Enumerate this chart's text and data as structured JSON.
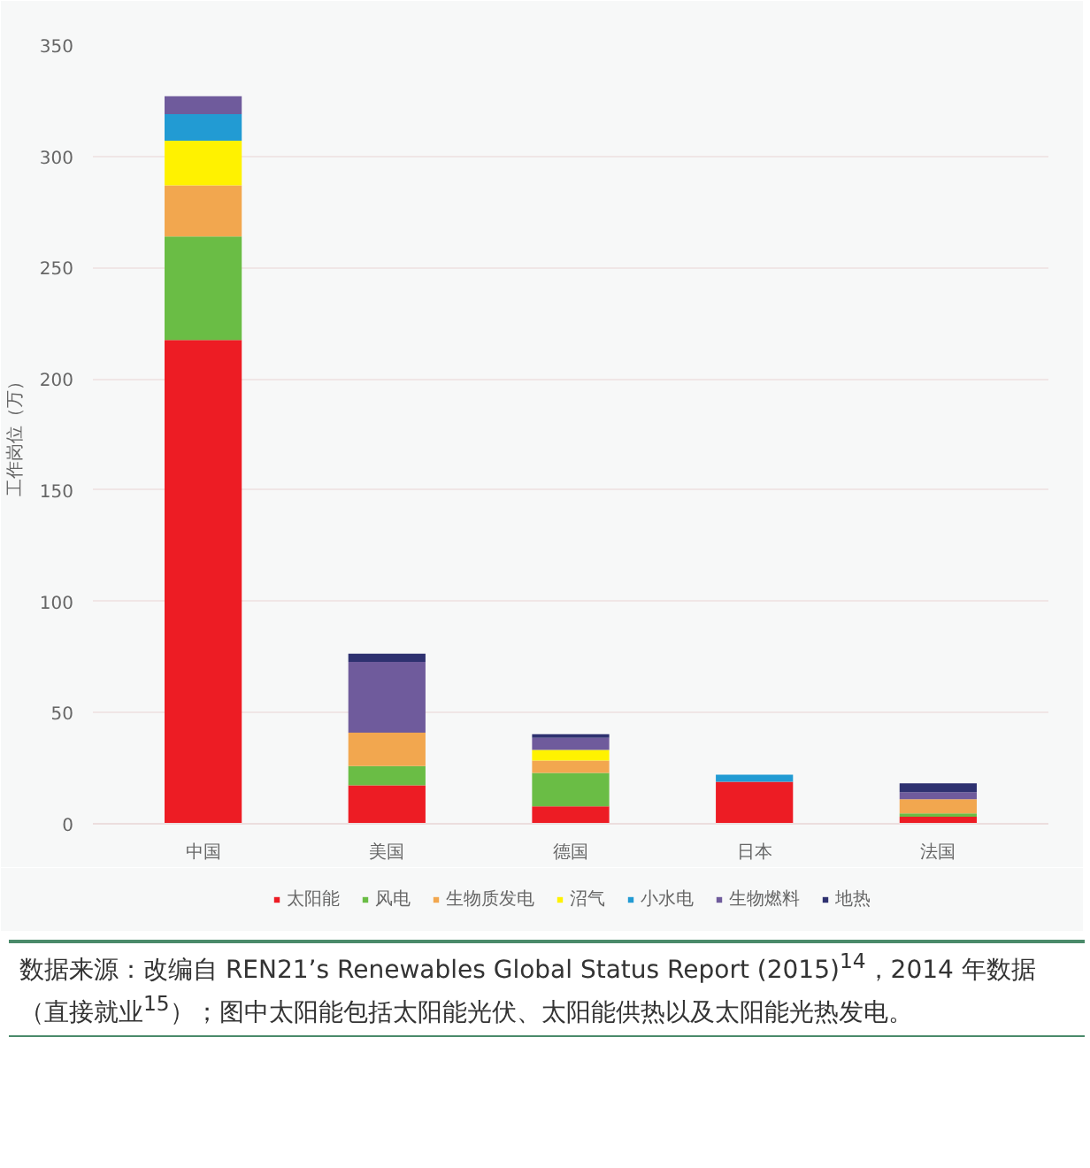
{
  "chart_data": {
    "type": "bar",
    "stacked": true,
    "ylabel": "工作岗位（万）",
    "categories": [
      "中国",
      "美国",
      "德国",
      "日本",
      "法国"
    ],
    "series": [
      {
        "name": "太阳能",
        "color": "#ed1c24",
        "values": [
          217.5,
          17.3,
          7.9,
          18.9,
          3.2
        ]
      },
      {
        "name": "风电",
        "color": "#6abd45",
        "values": [
          46.5,
          8.7,
          15,
          0,
          1.5
        ]
      },
      {
        "name": "生物质发电",
        "color": "#f2a74f",
        "values": [
          23,
          15,
          5.5,
          0,
          6.3
        ]
      },
      {
        "name": "沼气",
        "color": "#fff200",
        "values": [
          20,
          0,
          4.8,
          0,
          0
        ]
      },
      {
        "name": "小水电",
        "color": "#229bd3",
        "values": [
          12,
          0,
          0,
          3.2,
          0
        ]
      },
      {
        "name": "生物燃料",
        "color": "#6f5b9c",
        "values": [
          8,
          31.8,
          5.5,
          0,
          3.2
        ]
      },
      {
        "name": "地热",
        "color": "#2e3170",
        "values": [
          0,
          3.7,
          1.6,
          0,
          4
        ]
      }
    ],
    "ylim": [
      0,
      350
    ],
    "yticks": [
      0,
      50,
      100,
      150,
      200,
      250,
      300,
      350
    ],
    "grid": "y",
    "legend": "bottom",
    "annotations": [
      "数据来源：改编自 REN21’s Renewables Global Status Report (2015)$^{14}$，2014 年数据（直接就业$^{15}$）；图中太阳能包括太阳能光伏、太阳能供热以及太阳能光热发电。"
    ]
  }
}
